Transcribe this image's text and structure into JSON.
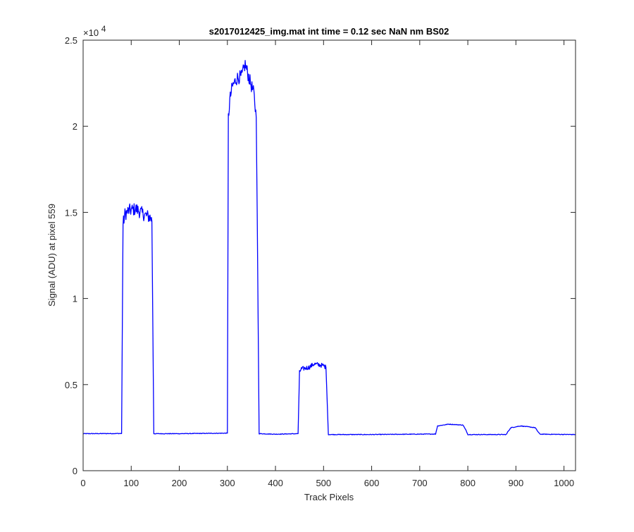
{
  "chart_data": {
    "type": "line",
    "title": "s2017012425_img.mat int time = 0.12 sec  NaN nm BS02",
    "xlabel": "Track Pixels",
    "ylabel": "Signal (ADU) at pixel 559",
    "xlim": [
      0,
      1024
    ],
    "ylim": [
      0,
      25000
    ],
    "x_ticks": [
      0,
      100,
      200,
      300,
      400,
      500,
      600,
      700,
      800,
      900,
      1000
    ],
    "x_tick_labels": [
      "0",
      "100",
      "200",
      "300",
      "400",
      "500",
      "600",
      "700",
      "800",
      "900",
      "1000"
    ],
    "y_ticks": [
      0,
      5000,
      10000,
      15000,
      20000,
      25000
    ],
    "y_tick_labels": [
      "0",
      "0.5",
      "1",
      "1.5",
      "2",
      "2.5"
    ],
    "y_exponent_base": "×10",
    "y_exponent_power": "4",
    "grid": false,
    "line_color": "#0000ff",
    "series": [
      {
        "x": [
          0,
          80,
          83,
          87,
          95,
          110,
          125,
          140,
          143,
          147,
          200,
          300,
          302,
          305,
          310,
          320,
          330,
          337,
          345,
          355,
          360,
          362,
          366,
          400,
          447,
          450,
          453,
          470,
          480,
          500,
          505,
          510,
          600,
          733,
          737,
          760,
          790,
          797,
          800,
          880,
          884,
          890,
          910,
          940,
          945,
          950,
          1024
        ],
        "y": [
          2150,
          2160,
          14300,
          14900,
          15100,
          15200,
          14900,
          14700,
          14500,
          2150,
          2150,
          2180,
          20500,
          21500,
          22300,
          22800,
          22900,
          23600,
          22800,
          21900,
          20500,
          15000,
          2150,
          2120,
          2150,
          5700,
          5900,
          6000,
          6200,
          6100,
          6000,
          2100,
          2100,
          2130,
          2600,
          2700,
          2650,
          2300,
          2100,
          2100,
          2300,
          2500,
          2600,
          2500,
          2300,
          2120,
          2100
        ]
      }
    ]
  }
}
